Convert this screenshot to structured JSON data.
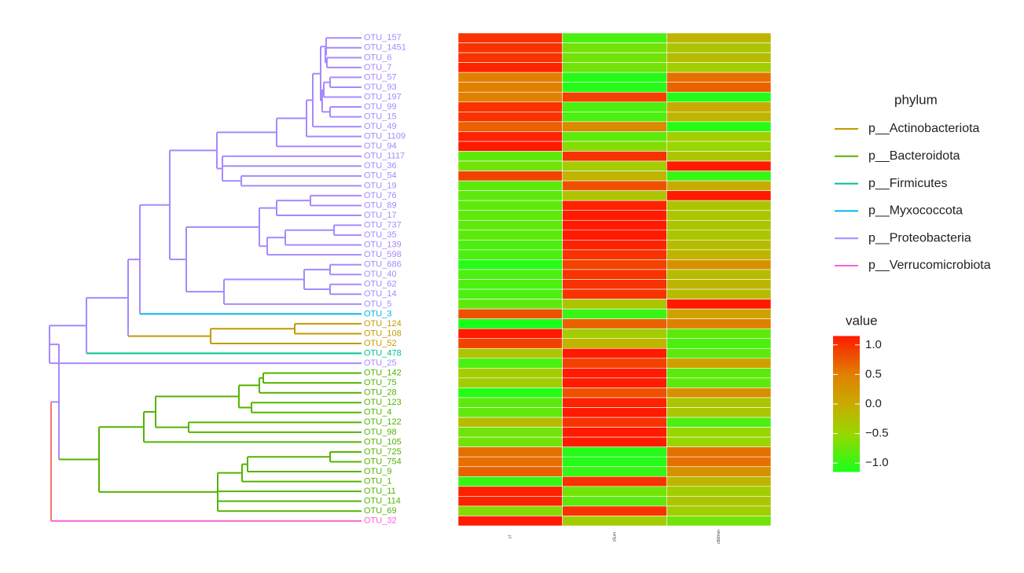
{
  "chart_data": {
    "type": "heatmap",
    "rows": [
      "OTU_157",
      "OTU_1451",
      "OTU_6",
      "OTU_7",
      "OTU_57",
      "OTU_93",
      "OTU_197",
      "OTU_99",
      "OTU_15",
      "OTU_49",
      "OTU_1109",
      "OTU_94",
      "OTU_1117",
      "OTU_36",
      "OTU_54",
      "OTU_19",
      "OTU_76",
      "OTU_89",
      "OTU_17",
      "OTU_737",
      "OTU_35",
      "OTU_139",
      "OTU_598",
      "OTU_686",
      "OTU_40",
      "OTU_62",
      "OTU_14",
      "OTU_5",
      "OTU_3",
      "OTU_124",
      "OTU_108",
      "OTU_52",
      "OTU_478",
      "OTU_25",
      "OTU_142",
      "OTU_75",
      "OTU_28",
      "OTU_123",
      "OTU_4",
      "OTU_122",
      "OTU_98",
      "OTU_105",
      "OTU_725",
      "OTU_754",
      "OTU_9",
      "OTU_1",
      "OTU_11",
      "OTU_114",
      "OTU_69",
      "OTU_32"
    ],
    "categories": [
      "cf",
      "c5um",
      "c500nm"
    ],
    "values": [
      [
        1.0,
        -0.9,
        -0.1
      ],
      [
        1.0,
        -0.7,
        -0.3
      ],
      [
        1.0,
        -0.7,
        -0.2
      ],
      [
        1.1,
        -0.7,
        -0.4
      ],
      [
        0.5,
        -1.1,
        0.6
      ],
      [
        0.5,
        -1.1,
        0.7
      ],
      [
        0.5,
        0.9,
        -1.1
      ],
      [
        1.0,
        -0.9,
        0.0
      ],
      [
        1.0,
        -0.9,
        -0.1
      ],
      [
        0.7,
        0.4,
        -1.1
      ],
      [
        1.1,
        -0.8,
        -0.4
      ],
      [
        1.15,
        -0.6,
        -0.5
      ],
      [
        -0.8,
        1.0,
        -0.3
      ],
      [
        -0.7,
        -0.4,
        1.15
      ],
      [
        0.9,
        -0.1,
        -1.0
      ],
      [
        -0.8,
        0.8,
        0.0
      ],
      [
        -0.8,
        -0.3,
        1.15
      ],
      [
        -0.8,
        1.1,
        -0.3
      ],
      [
        -0.8,
        1.15,
        -0.3
      ],
      [
        -0.8,
        1.15,
        -0.3
      ],
      [
        -0.8,
        1.15,
        -0.3
      ],
      [
        -0.9,
        1.1,
        -0.2
      ],
      [
        -0.9,
        1.0,
        -0.1
      ],
      [
        -1.1,
        0.9,
        0.3
      ],
      [
        -0.9,
        1.0,
        -0.2
      ],
      [
        -0.9,
        1.0,
        -0.1
      ],
      [
        -0.9,
        1.0,
        -0.2
      ],
      [
        -0.8,
        -0.3,
        1.15
      ],
      [
        0.8,
        -1.0,
        0.1
      ],
      [
        -1.15,
        0.7,
        0.5
      ],
      [
        1.15,
        -0.4,
        -0.8
      ],
      [
        0.9,
        -0.1,
        -0.9
      ],
      [
        -0.3,
        1.15,
        -0.8
      ],
      [
        -0.9,
        0.9,
        0.1
      ],
      [
        -0.4,
        1.15,
        -0.8
      ],
      [
        -0.4,
        1.15,
        -0.8
      ],
      [
        -1.1,
        0.8,
        0.3
      ],
      [
        -0.8,
        1.1,
        -0.3
      ],
      [
        -0.8,
        1.15,
        -0.3
      ],
      [
        -0.2,
        1.0,
        -0.9
      ],
      [
        -0.7,
        1.15,
        -0.5
      ],
      [
        -0.7,
        1.15,
        -0.5
      ],
      [
        0.6,
        -1.1,
        0.6
      ],
      [
        0.6,
        -1.1,
        0.6
      ],
      [
        0.7,
        -1.0,
        0.3
      ],
      [
        -1.0,
        1.0,
        -0.1
      ],
      [
        1.1,
        -0.7,
        -0.4
      ],
      [
        1.1,
        -0.8,
        -0.3
      ],
      [
        -0.6,
        1.0,
        -0.4
      ],
      [
        1.15,
        -0.4,
        -0.7
      ]
    ],
    "row_phylum": [
      4,
      4,
      4,
      4,
      4,
      4,
      4,
      4,
      4,
      4,
      4,
      4,
      4,
      4,
      4,
      4,
      4,
      4,
      4,
      4,
      4,
      4,
      4,
      4,
      4,
      4,
      4,
      4,
      3,
      0,
      0,
      0,
      2,
      4,
      1,
      1,
      1,
      1,
      1,
      1,
      1,
      1,
      1,
      1,
      1,
      1,
      1,
      1,
      1,
      5
    ],
    "legend_title": "phylum",
    "legend": [
      {
        "name": "p__Actinobacteriota",
        "color": "#c49a00"
      },
      {
        "name": "p__Bacteroidota",
        "color": "#53b400"
      },
      {
        "name": "p__Firmicutes",
        "color": "#00c094"
      },
      {
        "name": "p__Myxococcota",
        "color": "#00b6eb"
      },
      {
        "name": "p__Proteobacteria",
        "color": "#a58aff"
      },
      {
        "name": "p__Verrucomicrobiota",
        "color": "#fb61d7"
      }
    ],
    "colorbar_title": "value",
    "colorlim": [
      -1.15,
      1.15
    ],
    "colorscale": [
      [
        -1.15,
        "#1aff1a"
      ],
      [
        -0.5,
        "#99d600"
      ],
      [
        0,
        "#c8ab00"
      ],
      [
        0.5,
        "#e08000"
      ],
      [
        1.15,
        "#ff1a00"
      ]
    ],
    "colorticks": [
      {
        "value": 1.0,
        "label": "1.0"
      },
      0.5,
      {
        "value": 0.0,
        "label": "0.0"
      },
      {
        "value": -0.5,
        "label": "−0.5"
      },
      {
        "value": -1.0,
        "label": "−1.0"
      }
    ]
  }
}
